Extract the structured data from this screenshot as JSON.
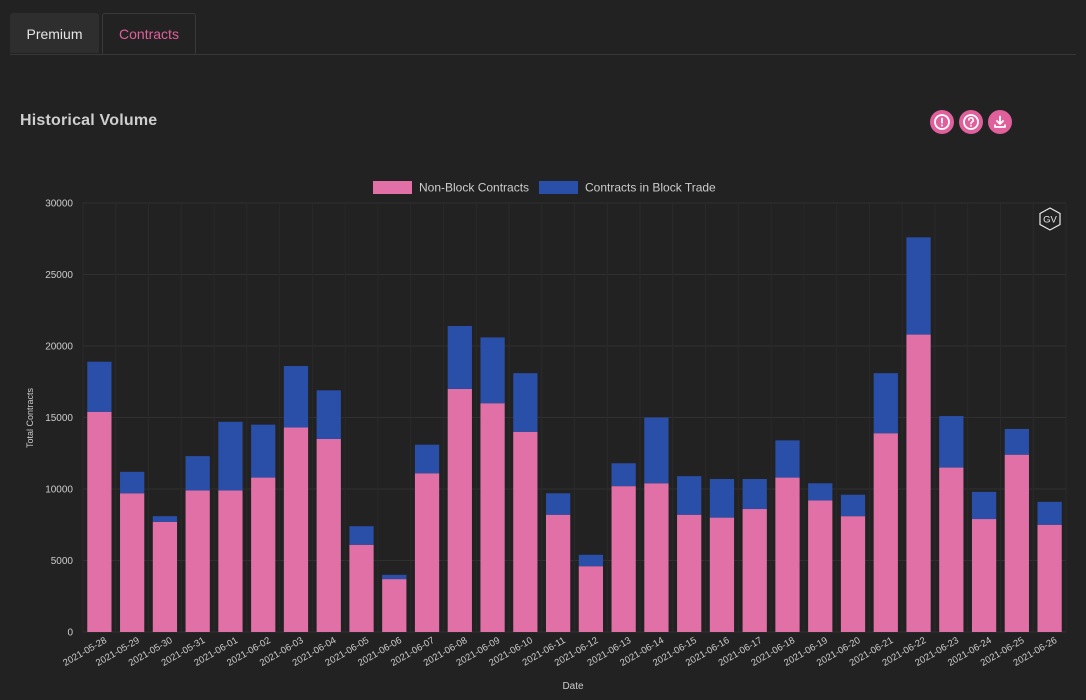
{
  "tabs": [
    {
      "label": "Premium",
      "active": false
    },
    {
      "label": "Contracts",
      "active": true
    }
  ],
  "section": {
    "title": "Historical Volume",
    "actions": [
      {
        "icon": "alert-circle-icon"
      },
      {
        "icon": "help-circle-icon"
      },
      {
        "icon": "download-icon"
      }
    ]
  },
  "watermark": "GV",
  "colors": {
    "accent": "#e0609c",
    "non_block": "#e070a6",
    "block": "#2a4fa8",
    "background": "#222222"
  },
  "chart_data": {
    "type": "bar",
    "stacked": true,
    "xlabel": "Date",
    "ylabel": "Total Contracts",
    "ylim": [
      0,
      30000
    ],
    "yticks": [
      0,
      5000,
      10000,
      15000,
      20000,
      25000,
      30000
    ],
    "grid": true,
    "legend_position": "top-center",
    "categories": [
      "2021-05-28",
      "2021-05-29",
      "2021-05-30",
      "2021-05-31",
      "2021-06-01",
      "2021-06-02",
      "2021-06-03",
      "2021-06-04",
      "2021-06-05",
      "2021-06-06",
      "2021-06-07",
      "2021-06-08",
      "2021-06-09",
      "2021-06-10",
      "2021-06-11",
      "2021-06-12",
      "2021-06-13",
      "2021-06-14",
      "2021-06-15",
      "2021-06-16",
      "2021-06-17",
      "2021-06-18",
      "2021-06-19",
      "2021-06-20",
      "2021-06-21",
      "2021-06-22",
      "2021-06-23",
      "2021-06-24",
      "2021-06-25",
      "2021-06-26"
    ],
    "series": [
      {
        "name": "Non-Block Contracts",
        "color": "#e070a6",
        "values": [
          15400,
          9700,
          7700,
          9900,
          9900,
          10800,
          14300,
          13500,
          6100,
          3700,
          11100,
          17000,
          16000,
          14000,
          8200,
          4600,
          10200,
          10400,
          8200,
          8000,
          8600,
          10800,
          9200,
          8100,
          13900,
          20800,
          11500,
          7900,
          12400,
          7500
        ]
      },
      {
        "name": "Contracts in Block Trade",
        "color": "#2a4fa8",
        "values": [
          3500,
          1500,
          400,
          2400,
          4800,
          3700,
          4300,
          3400,
          1300,
          300,
          2000,
          4400,
          4600,
          4100,
          1500,
          800,
          1600,
          4600,
          2700,
          2700,
          2100,
          2600,
          1200,
          1500,
          4200,
          6800,
          3600,
          1900,
          1800,
          1600
        ]
      }
    ]
  }
}
